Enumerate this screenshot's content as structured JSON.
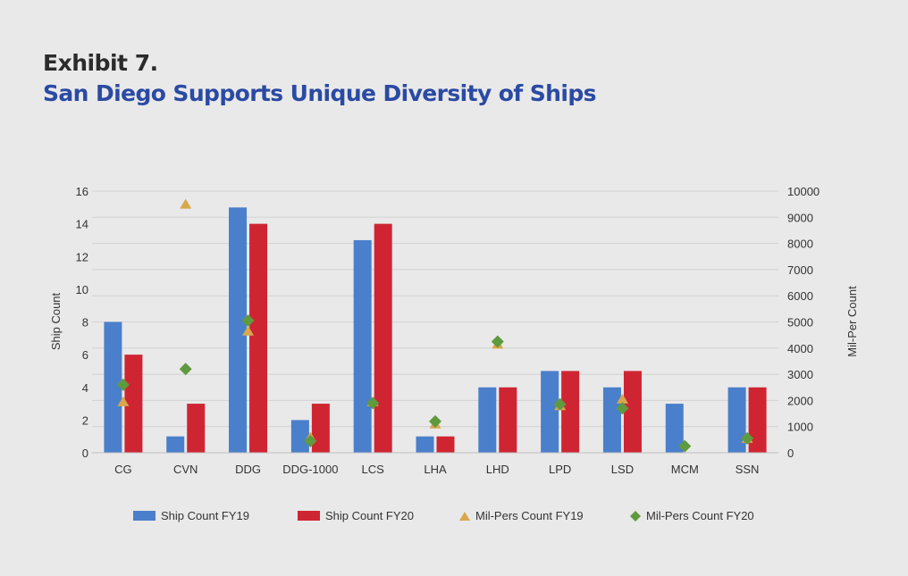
{
  "exhibit_label": "Exhibit 7.",
  "chart_data": {
    "type": "bar",
    "title": "San Diego Supports Unique Diversity of Ships",
    "categories": [
      "CG",
      "CVN",
      "DDG",
      "DDG-1000",
      "LCS",
      "LHA",
      "LHD",
      "LPD",
      "LSD",
      "MCM",
      "SSN"
    ],
    "series": [
      {
        "name": "Ship Count FY19",
        "kind": "bar",
        "axis": "left",
        "color": "#4a7fcb",
        "values": [
          8,
          1,
          15,
          2,
          13,
          1,
          4,
          5,
          4,
          3,
          4
        ]
      },
      {
        "name": "Ship Count FY20",
        "kind": "bar",
        "axis": "left",
        "color": "#cf2533",
        "values": [
          6,
          3,
          14,
          3,
          14,
          1,
          4,
          5,
          5,
          0,
          4
        ]
      },
      {
        "name": "Mil-Pers Count FY19",
        "kind": "marker-triangle",
        "axis": "right",
        "color": "#d8a84c",
        "values": [
          1950,
          9500,
          4650,
          600,
          1950,
          1100,
          4150,
          1800,
          2050,
          null,
          550
        ]
      },
      {
        "name": "Mil-Pers Count FY20",
        "kind": "marker-diamond",
        "axis": "right",
        "color": "#5f9a3e",
        "values": [
          2600,
          3200,
          5050,
          450,
          1900,
          1200,
          4250,
          1850,
          1700,
          250,
          550
        ]
      }
    ],
    "ylabel": "Ship Count",
    "ylim": [
      0,
      16
    ],
    "yticks": [
      0,
      2,
      4,
      6,
      8,
      10,
      12,
      14,
      16
    ],
    "y2label": "Mil-Per Count",
    "y2lim": [
      0,
      10000
    ],
    "y2ticks": [
      0,
      1000,
      2000,
      3000,
      4000,
      5000,
      6000,
      7000,
      8000,
      9000,
      10000
    ],
    "grid": true,
    "legend": "bottom"
  }
}
